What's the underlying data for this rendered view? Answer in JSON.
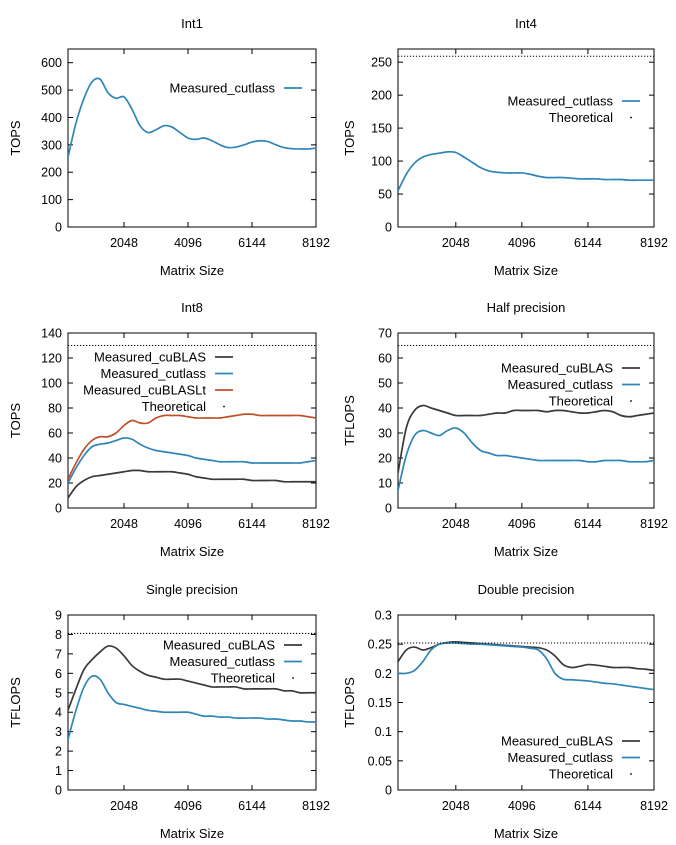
{
  "colors": {
    "cuBLAS": "#3a3a3a",
    "cutlass": "#2e86b8",
    "cuBLASLt": "#c0502a",
    "theoretical": "#000000"
  },
  "chart_data": [
    {
      "type": "line",
      "title": "Int1",
      "xlabel": "Matrix Size",
      "ylabel": "TOPS",
      "xlim": [
        256,
        8192
      ],
      "ylim": [
        0,
        650
      ],
      "xticks": [
        "2048",
        "4096",
        "6144",
        "8192"
      ],
      "xtick_values": [
        2048,
        4096,
        6144,
        8192
      ],
      "yticks": [
        "0",
        "100",
        "200",
        "300",
        "400",
        "500",
        "600"
      ],
      "ytick_values": [
        0,
        100,
        200,
        300,
        400,
        500,
        600
      ],
      "legend": "top-right",
      "series": [
        {
          "name": "Measured_cutlass",
          "color": "#2e86b8",
          "x": [
            256,
            512,
            768,
            1024,
            1280,
            1536,
            1792,
            2048,
            2304,
            2560,
            2816,
            3072,
            3328,
            3584,
            3840,
            4096,
            4352,
            4608,
            4864,
            5120,
            5376,
            5632,
            5888,
            6144,
            6400,
            6656,
            6912,
            7168,
            7424,
            7680,
            7936,
            8192
          ],
          "y": [
            255,
            380,
            470,
            530,
            540,
            490,
            470,
            475,
            430,
            370,
            345,
            355,
            370,
            365,
            345,
            325,
            320,
            325,
            315,
            300,
            290,
            292,
            300,
            310,
            315,
            312,
            300,
            290,
            286,
            285,
            285,
            288
          ]
        }
      ]
    },
    {
      "type": "line",
      "title": "Int4",
      "xlabel": "Matrix Size",
      "ylabel": "TOPS",
      "xlim": [
        256,
        8192
      ],
      "ylim": [
        0,
        270
      ],
      "xticks": [
        "2048",
        "4096",
        "6144",
        "8192"
      ],
      "xtick_values": [
        2048,
        4096,
        6144,
        8192
      ],
      "yticks": [
        "0",
        "50",
        "100",
        "150",
        "200",
        "250"
      ],
      "ytick_values": [
        0,
        50,
        100,
        150,
        200,
        250
      ],
      "legend": "top-right",
      "series": [
        {
          "name": "Measured_cutlass",
          "color": "#2e86b8",
          "x": [
            256,
            512,
            768,
            1024,
            1280,
            1536,
            1792,
            2048,
            2304,
            2560,
            2816,
            3072,
            3328,
            3584,
            3840,
            4096,
            4352,
            4608,
            4864,
            5120,
            5376,
            5632,
            5888,
            6144,
            6400,
            6656,
            6912,
            7168,
            7424,
            7680,
            7936,
            8192
          ],
          "y": [
            55,
            80,
            97,
            106,
            110,
            112,
            114,
            113,
            106,
            98,
            90,
            85,
            83,
            82,
            82,
            82,
            80,
            77,
            75,
            75,
            75,
            74,
            73,
            73,
            73,
            72,
            72,
            72,
            71,
            71,
            71,
            71
          ]
        },
        {
          "name": "Theoretical",
          "style": "dotted",
          "color": "#000000",
          "x": [
            256,
            8192
          ],
          "y": [
            259,
            259
          ]
        }
      ]
    },
    {
      "type": "line",
      "title": "Int8",
      "xlabel": "Matrix Size",
      "ylabel": "TOPS",
      "xlim": [
        256,
        8192
      ],
      "ylim": [
        0,
        140
      ],
      "xticks": [
        "2048",
        "4096",
        "6144",
        "8192"
      ],
      "xtick_values": [
        2048,
        4096,
        6144,
        8192
      ],
      "yticks": [
        "0",
        "20",
        "40",
        "60",
        "80",
        "100",
        "120",
        "140"
      ],
      "ytick_values": [
        0,
        20,
        40,
        60,
        80,
        100,
        120,
        140
      ],
      "legend": "top-left",
      "series": [
        {
          "name": "Measured_cuBLAS",
          "color": "#3a3a3a",
          "x": [
            256,
            512,
            768,
            1024,
            1280,
            1536,
            1792,
            2048,
            2304,
            2560,
            2816,
            3072,
            3328,
            3584,
            3840,
            4096,
            4352,
            4608,
            4864,
            5120,
            5376,
            5632,
            5888,
            6144,
            6400,
            6656,
            6912,
            7168,
            7424,
            7680,
            7936,
            8192
          ],
          "y": [
            8,
            17,
            22,
            25,
            26,
            27,
            28,
            29,
            30,
            30,
            29,
            29,
            29,
            29,
            28,
            27,
            25,
            24,
            23,
            23,
            23,
            23,
            23,
            22,
            22,
            22,
            22,
            21,
            21,
            21,
            21,
            21
          ]
        },
        {
          "name": "Measured_cutlass",
          "color": "#2e86b8",
          "x": [
            256,
            512,
            768,
            1024,
            1280,
            1536,
            1792,
            2048,
            2304,
            2560,
            2816,
            3072,
            3328,
            3584,
            3840,
            4096,
            4352,
            4608,
            4864,
            5120,
            5376,
            5632,
            5888,
            6144,
            6400,
            6656,
            6912,
            7168,
            7424,
            7680,
            7936,
            8192
          ],
          "y": [
            20,
            32,
            42,
            49,
            51,
            52,
            54,
            56,
            55,
            51,
            48,
            46,
            45,
            44,
            43,
            42,
            40,
            39,
            38,
            37,
            37,
            37,
            37,
            36,
            36,
            36,
            36,
            36,
            36,
            36,
            37,
            38
          ]
        },
        {
          "name": "Measured_cuBLASLt",
          "color": "#c0502a",
          "x": [
            256,
            512,
            768,
            1024,
            1280,
            1536,
            1792,
            2048,
            2304,
            2560,
            2816,
            3072,
            3328,
            3584,
            3840,
            4096,
            4352,
            4608,
            4864,
            5120,
            5376,
            5632,
            5888,
            6144,
            6400,
            6656,
            6912,
            7168,
            7424,
            7680,
            7936,
            8192
          ],
          "y": [
            23,
            36,
            47,
            54,
            57,
            57,
            60,
            66,
            70,
            68,
            68,
            72,
            74,
            74,
            74,
            73,
            72,
            72,
            72,
            72,
            73,
            74,
            75,
            75,
            74,
            74,
            74,
            74,
            74,
            74,
            73,
            72
          ]
        },
        {
          "name": "Theoretical",
          "style": "dotted",
          "color": "#000000",
          "x": [
            256,
            8192
          ],
          "y": [
            130,
            130
          ]
        }
      ]
    },
    {
      "type": "line",
      "title": "Half precision",
      "xlabel": "Matrix Size",
      "ylabel": "TFLOPS",
      "xlim": [
        256,
        8192
      ],
      "ylim": [
        0,
        70
      ],
      "xticks": [
        "2048",
        "4096",
        "6144",
        "8192"
      ],
      "xtick_values": [
        2048,
        4096,
        6144,
        8192
      ],
      "yticks": [
        "0",
        "10",
        "20",
        "30",
        "40",
        "50",
        "60",
        "70"
      ],
      "ytick_values": [
        0,
        10,
        20,
        30,
        40,
        50,
        60,
        70
      ],
      "legend": "top-right",
      "series": [
        {
          "name": "Measured_cuBLAS",
          "color": "#3a3a3a",
          "x": [
            256,
            512,
            768,
            1024,
            1280,
            1536,
            1792,
            2048,
            2304,
            2560,
            2816,
            3072,
            3328,
            3584,
            3840,
            4096,
            4352,
            4608,
            4864,
            5120,
            5376,
            5632,
            5888,
            6144,
            6400,
            6656,
            6912,
            7168,
            7424,
            7680,
            7936,
            8192
          ],
          "y": [
            14,
            32,
            39,
            41,
            40,
            39,
            38,
            37,
            37,
            37,
            37,
            37.5,
            38,
            38,
            39,
            39,
            39,
            39,
            38.5,
            39,
            39,
            38.5,
            38,
            38,
            38.5,
            39,
            38.5,
            37,
            36.5,
            37,
            37.5,
            38
          ]
        },
        {
          "name": "Measured_cutlass",
          "color": "#2e86b8",
          "x": [
            256,
            512,
            768,
            1024,
            1280,
            1536,
            1792,
            2048,
            2304,
            2560,
            2816,
            3072,
            3328,
            3584,
            3840,
            4096,
            4352,
            4608,
            4864,
            5120,
            5376,
            5632,
            5888,
            6144,
            6400,
            6656,
            6912,
            7168,
            7424,
            7680,
            7936,
            8192
          ],
          "y": [
            7,
            21,
            29,
            31,
            30,
            29,
            31,
            32,
            30,
            26,
            23,
            22,
            21,
            21,
            20.5,
            20,
            19.5,
            19,
            19,
            19,
            19,
            19,
            19,
            18.5,
            18.5,
            19,
            19,
            19,
            18.5,
            18.5,
            18.5,
            19
          ]
        },
        {
          "name": "Theoretical",
          "style": "dotted",
          "color": "#000000",
          "x": [
            256,
            8192
          ],
          "y": [
            65,
            65
          ]
        }
      ]
    },
    {
      "type": "line",
      "title": "Single precision",
      "xlabel": "Matrix Size",
      "ylabel": "TFLOPS",
      "xlim": [
        256,
        8192
      ],
      "ylim": [
        0,
        9
      ],
      "xticks": [
        "2048",
        "4096",
        "6144",
        "8192"
      ],
      "xtick_values": [
        2048,
        4096,
        6144,
        8192
      ],
      "yticks": [
        "0",
        "1",
        "2",
        "3",
        "4",
        "5",
        "6",
        "7",
        "8",
        "9"
      ],
      "ytick_values": [
        0,
        1,
        2,
        3,
        4,
        5,
        6,
        7,
        8,
        9
      ],
      "legend": "top-right",
      "series": [
        {
          "name": "Measured_cuBLAS",
          "color": "#3a3a3a",
          "x": [
            256,
            512,
            768,
            1024,
            1280,
            1536,
            1792,
            2048,
            2304,
            2560,
            2816,
            3072,
            3328,
            3584,
            3840,
            4096,
            4352,
            4608,
            4864,
            5120,
            5376,
            5632,
            5888,
            6144,
            6400,
            6656,
            6912,
            7168,
            7424,
            7680,
            7936,
            8192
          ],
          "y": [
            4.1,
            5.2,
            6.2,
            6.7,
            7.1,
            7.4,
            7.3,
            6.9,
            6.4,
            6.1,
            5.9,
            5.8,
            5.7,
            5.7,
            5.7,
            5.6,
            5.5,
            5.4,
            5.3,
            5.3,
            5.3,
            5.3,
            5.2,
            5.2,
            5.2,
            5.2,
            5.2,
            5.1,
            5.1,
            5.0,
            5.0,
            5.0
          ]
        },
        {
          "name": "Measured_cutlass",
          "color": "#2e86b8",
          "x": [
            256,
            512,
            768,
            1024,
            1280,
            1536,
            1792,
            2048,
            2304,
            2560,
            2816,
            3072,
            3328,
            3584,
            3840,
            4096,
            4352,
            4608,
            4864,
            5120,
            5376,
            5632,
            5888,
            6144,
            6400,
            6656,
            6912,
            7168,
            7424,
            7680,
            7936,
            8192
          ],
          "y": [
            2.6,
            4.1,
            5.3,
            5.85,
            5.7,
            5.0,
            4.5,
            4.4,
            4.3,
            4.2,
            4.1,
            4.05,
            4.0,
            4.0,
            4.0,
            4.0,
            3.9,
            3.8,
            3.8,
            3.75,
            3.75,
            3.7,
            3.7,
            3.7,
            3.7,
            3.65,
            3.65,
            3.6,
            3.55,
            3.55,
            3.5,
            3.5
          ]
        },
        {
          "name": "Theoretical",
          "style": "dotted",
          "color": "#000000",
          "x": [
            256,
            8192
          ],
          "y": [
            8.05,
            8.05
          ]
        }
      ]
    },
    {
      "type": "line",
      "title": "Double precision",
      "xlabel": "Matrix Size",
      "ylabel": "TFLOPS",
      "xlim": [
        256,
        8192
      ],
      "ylim": [
        0,
        0.3
      ],
      "xticks": [
        "2048",
        "4096",
        "6144",
        "8192"
      ],
      "xtick_values": [
        2048,
        4096,
        6144,
        8192
      ],
      "yticks": [
        "0",
        "0.05",
        "0.1",
        "0.15",
        "0.2",
        "0.25",
        "0.3"
      ],
      "ytick_values": [
        0,
        0.05,
        0.1,
        0.15,
        0.2,
        0.25,
        0.3
      ],
      "legend": "bottom-right",
      "series": [
        {
          "name": "Measured_cuBLAS",
          "color": "#3a3a3a",
          "x": [
            256,
            512,
            768,
            1024,
            1280,
            1536,
            1792,
            2048,
            2304,
            2560,
            2816,
            3072,
            3328,
            3584,
            3840,
            4096,
            4352,
            4608,
            4864,
            5120,
            5376,
            5632,
            5888,
            6144,
            6400,
            6656,
            6912,
            7168,
            7424,
            7680,
            7936,
            8192
          ],
          "y": [
            0.22,
            0.24,
            0.245,
            0.24,
            0.244,
            0.25,
            0.253,
            0.254,
            0.253,
            0.252,
            0.251,
            0.25,
            0.249,
            0.248,
            0.247,
            0.246,
            0.245,
            0.244,
            0.24,
            0.23,
            0.215,
            0.21,
            0.212,
            0.215,
            0.214,
            0.212,
            0.21,
            0.21,
            0.21,
            0.208,
            0.207,
            0.205
          ]
        },
        {
          "name": "Measured_cutlass",
          "color": "#2e86b8",
          "x": [
            256,
            512,
            768,
            1024,
            1280,
            1536,
            1792,
            2048,
            2304,
            2560,
            2816,
            3072,
            3328,
            3584,
            3840,
            4096,
            4352,
            4608,
            4864,
            5120,
            5376,
            5632,
            5888,
            6144,
            6400,
            6656,
            6912,
            7168,
            7424,
            7680,
            7936,
            8192
          ],
          "y": [
            0.2,
            0.2,
            0.205,
            0.22,
            0.24,
            0.25,
            0.252,
            0.252,
            0.251,
            0.25,
            0.25,
            0.249,
            0.248,
            0.247,
            0.246,
            0.245,
            0.243,
            0.24,
            0.225,
            0.2,
            0.19,
            0.189,
            0.188,
            0.187,
            0.185,
            0.183,
            0.182,
            0.18,
            0.178,
            0.176,
            0.174,
            0.172
          ]
        },
        {
          "name": "Theoretical",
          "style": "dotted",
          "color": "#000000",
          "x": [
            256,
            8192
          ],
          "y": [
            0.252,
            0.252
          ]
        }
      ]
    }
  ]
}
